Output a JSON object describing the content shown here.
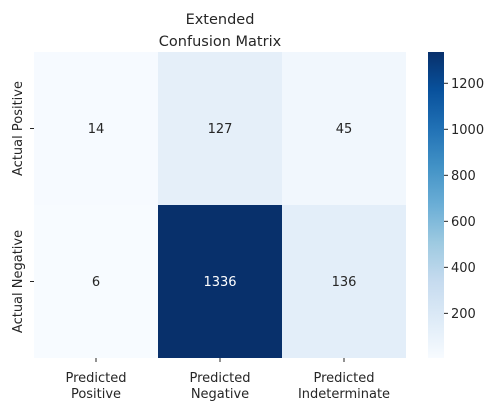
{
  "chart_data": {
    "type": "heatmap",
    "title": [
      "Extended",
      "Confusion Matrix"
    ],
    "rows": [
      "Actual Positive",
      "Actual Negative"
    ],
    "columns": [
      [
        "Predicted",
        "Positive"
      ],
      [
        "Predicted",
        "Negative"
      ],
      [
        "Predicted",
        "Indeterminate"
      ]
    ],
    "values": [
      [
        14,
        127,
        45
      ],
      [
        6,
        1336,
        136
      ]
    ],
    "colormap": "Blues",
    "vmin": 6,
    "vmax": 1336,
    "colorbar_ticks": [
      200,
      400,
      600,
      800,
      1000,
      1200
    ],
    "annotate": true,
    "colors": {
      "low": "#f7fbff",
      "high": "#08306b",
      "text_dark": "#262626",
      "text_light": "#ffffff"
    }
  }
}
